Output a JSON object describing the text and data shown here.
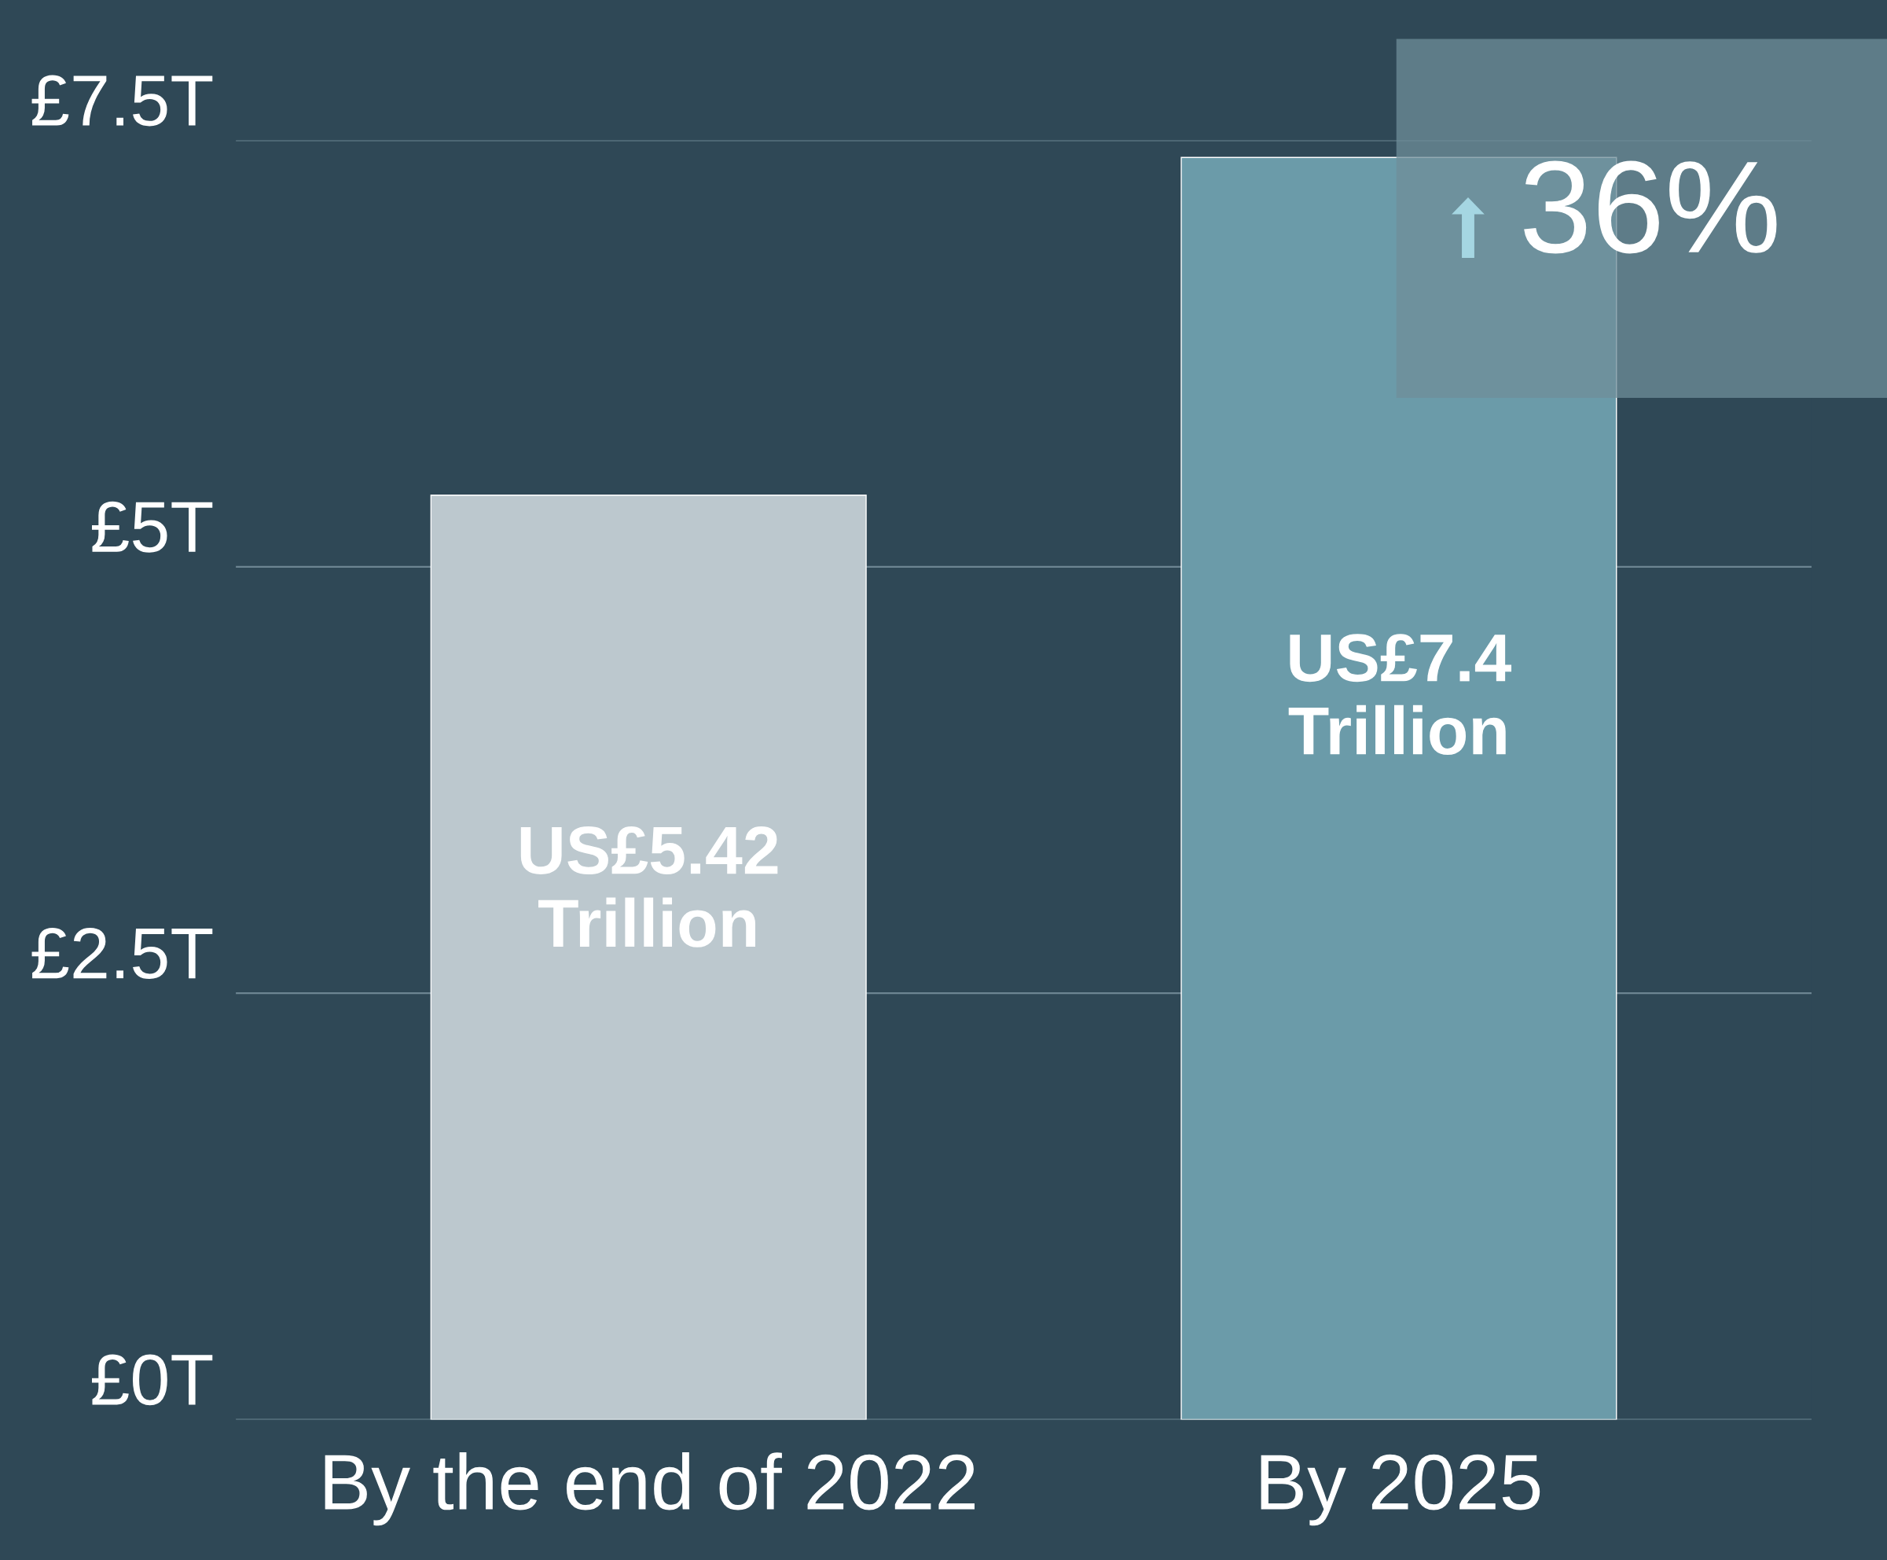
{
  "chart_data": {
    "type": "bar",
    "categories": [
      "By the end of 2022",
      "By 2025"
    ],
    "values": [
      5.42,
      7.4
    ],
    "colors": [
      "#bcc8ce",
      "#6b9ba9"
    ],
    "value_labels": [
      "US£5.42\nTrillion",
      "US£7.4\nTrillion"
    ],
    "ylim": [
      0,
      7.5
    ],
    "yticks": [
      {
        "value": 0,
        "label": "£0T"
      },
      {
        "value": 2.5,
        "label": "£2.5T"
      },
      {
        "value": 5,
        "label": "£5T"
      },
      {
        "value": 7.5,
        "label": "£7.5T"
      }
    ],
    "grid": "y",
    "annotations": [
      "36%"
    ]
  }
}
